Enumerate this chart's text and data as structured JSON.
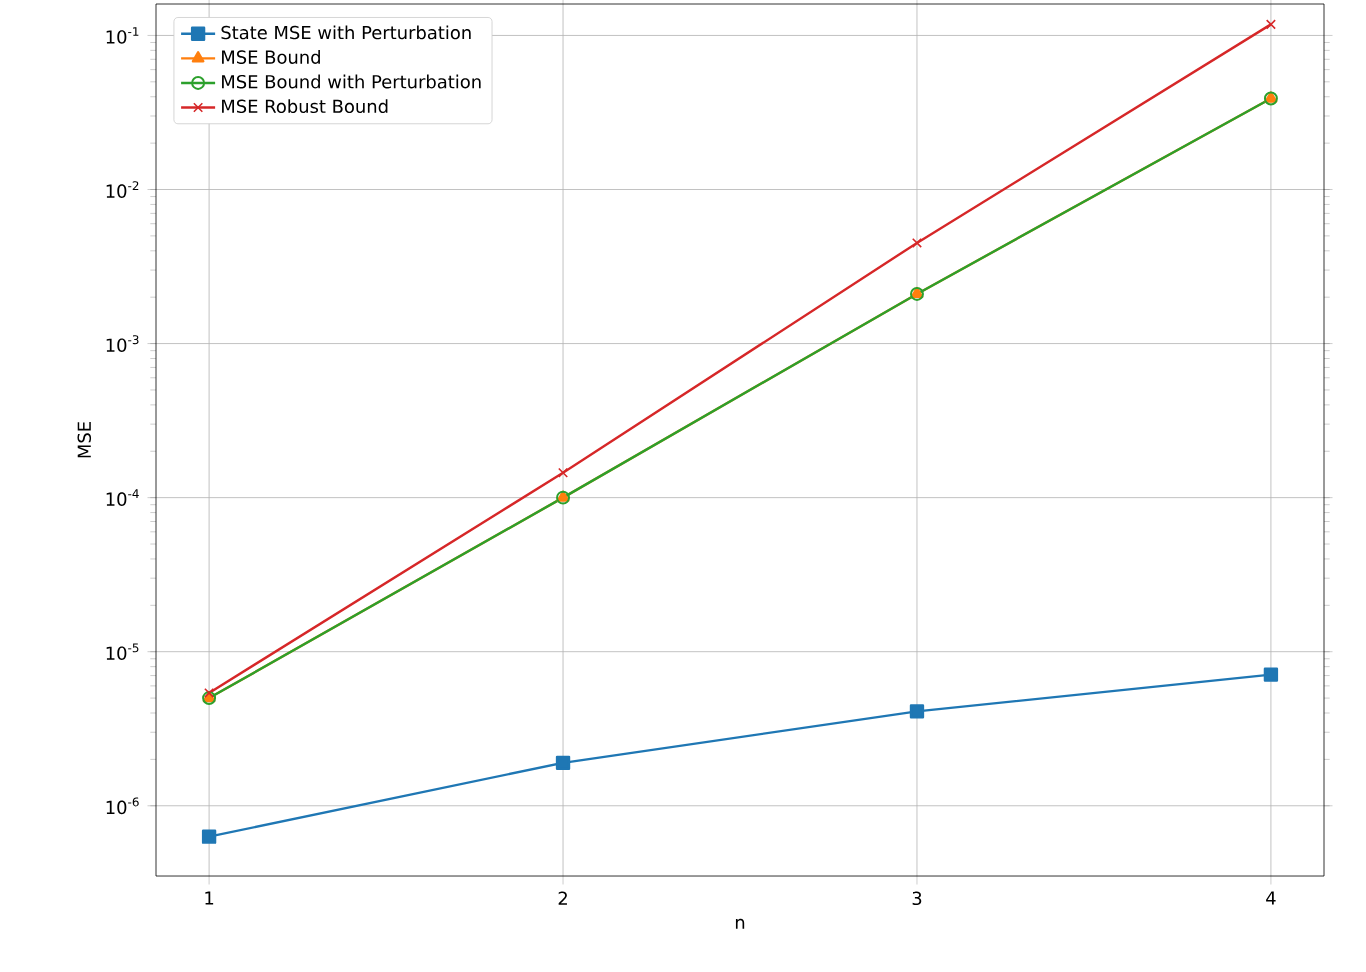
{
  "chart_data": {
    "type": "line",
    "xlabel": "n",
    "ylabel": "MSE",
    "x": [
      1,
      2,
      3,
      4
    ],
    "log": true,
    "grid": true,
    "legend": "top left",
    "line_style": "solid",
    "xlim": [
      0.85,
      4.15
    ],
    "ylim": [
      3.5e-07,
      0.16
    ],
    "xticks": [
      1,
      2,
      3,
      4
    ],
    "yticks": [
      {
        "value": 1e-06,
        "label": "10$^{-6}$"
      },
      {
        "value": 1e-05,
        "label": "10$^{-5}$"
      },
      {
        "value": 0.0001,
        "label": "10$^{-4}$"
      },
      {
        "value": 0.001,
        "label": "10$^{-3}$"
      },
      {
        "value": 0.01,
        "label": "10$^{-2}$"
      },
      {
        "value": 0.1,
        "label": "10$^{-1}$"
      }
    ],
    "series": [
      {
        "name": "State MSE with Perturbation",
        "color": "#1f77b4",
        "marker": "square",
        "values": [
          6.3e-07,
          1.9e-06,
          4.1e-06,
          7.1e-06
        ]
      },
      {
        "name": "MSE Bound",
        "color": "#ff7f0e",
        "marker": "triangle",
        "values": [
          5e-06,
          0.0001,
          0.0021,
          0.039
        ]
      },
      {
        "name": "MSE Bound with Perturbation",
        "color": "#2ca02c",
        "marker": "circle",
        "values": [
          5e-06,
          0.0001,
          0.0021,
          0.039
        ]
      },
      {
        "name": "MSE Robust Bound",
        "color": "#d62728",
        "marker": "cross",
        "values": [
          5.4e-06,
          0.000145,
          0.0045,
          0.118
        ]
      }
    ]
  }
}
